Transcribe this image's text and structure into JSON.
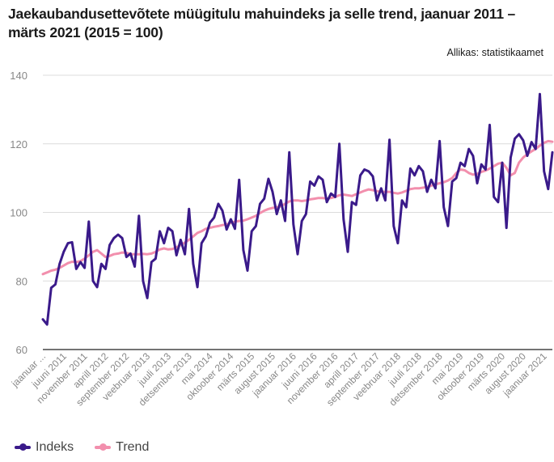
{
  "chart_data": {
    "type": "line",
    "title": "Jaekaubandusettevõtete müügitulu mahuindeks ja selle trend, jaanuar 2011 – märts 2021 (2015 = 100)",
    "source": "Allikas: statistikaamet",
    "xlabel": "",
    "ylabel": "",
    "ylim": [
      60,
      140
    ],
    "yticks": [
      60,
      80,
      100,
      120,
      140
    ],
    "grid": true,
    "legend_position": "bottom-left",
    "x_start": "2011-01",
    "x_count": 123,
    "xtick_labels": [
      "jaanuar ...",
      "juuni 2011",
      "november 2011",
      "aprill 2012",
      "september 2012",
      "veebruar 2013",
      "juuli 2013",
      "detsember 2013",
      "mai 2014",
      "oktoober 2014",
      "märts 2015",
      "august 2015",
      "jaanuar 2016",
      "juuni 2016",
      "november 2016",
      "aprill 2017",
      "september 2017",
      "veebruar 2018",
      "juuli 2018",
      "detsember 2018",
      "mai 2019",
      "oktoober 2019",
      "märts 2020",
      "august 2020",
      "jaanuar 2021"
    ],
    "xtick_every_months": 5,
    "series": [
      {
        "name": "Indeks",
        "color": "#3a1a8a",
        "values": [
          68.8,
          67.3,
          78.0,
          79.0,
          85.0,
          88.5,
          91.0,
          91.3,
          83.5,
          85.5,
          83.8,
          97.3,
          80.0,
          78.2,
          85.0,
          83.5,
          90.5,
          92.5,
          93.5,
          92.5,
          87.0,
          88.0,
          84.2,
          99.0,
          80.0,
          75.0,
          85.5,
          86.5,
          94.5,
          91.0,
          95.5,
          94.5,
          87.5,
          92.0,
          87.8,
          101.0,
          85.0,
          78.2,
          91.0,
          93.0,
          97.0,
          98.5,
          102.5,
          100.5,
          95.0,
          98.0,
          95.2,
          109.5,
          89.0,
          83.0,
          94.5,
          96.0,
          102.5,
          104.0,
          109.8,
          106.0,
          99.5,
          103.5,
          97.5,
          117.5,
          96.5,
          87.8,
          97.5,
          99.5,
          109.0,
          107.8,
          110.5,
          109.5,
          103.0,
          105.5,
          104.5,
          120.0,
          98.0,
          88.5,
          103.0,
          102.2,
          110.8,
          112.5,
          112.0,
          110.5,
          103.5,
          107.0,
          103.5,
          121.2,
          96.0,
          91.0,
          103.5,
          101.5,
          112.8,
          110.8,
          113.5,
          112.0,
          106.0,
          109.5,
          107.0,
          120.8,
          101.5,
          96.0,
          109.0,
          110.0,
          114.5,
          113.5,
          118.5,
          116.5,
          108.5,
          114.0,
          112.5,
          125.5,
          104.5,
          103.0,
          114.5,
          95.5,
          116.0,
          121.5,
          122.8,
          121.0,
          116.5,
          120.5,
          118.5,
          134.5,
          112.0,
          106.8,
          117.5
        ]
      },
      {
        "name": "Trend",
        "color": "#f28fad",
        "values": [
          82.0,
          82.5,
          83.0,
          83.3,
          83.8,
          84.5,
          85.2,
          85.6,
          85.5,
          85.8,
          86.5,
          87.5,
          88.5,
          89.0,
          88.0,
          87.0,
          87.3,
          87.8,
          88.0,
          88.3,
          88.2,
          87.8,
          87.8,
          87.8,
          87.9,
          87.8,
          88.0,
          88.5,
          89.2,
          89.5,
          89.2,
          89.3,
          89.8,
          90.5,
          91.2,
          92.0,
          93.0,
          94.0,
          94.5,
          95.2,
          95.5,
          95.8,
          96.0,
          96.3,
          96.5,
          97.0,
          97.3,
          97.5,
          97.6,
          98.0,
          98.5,
          99.0,
          99.8,
          100.5,
          101.0,
          101.3,
          101.5,
          101.8,
          102.5,
          103.2,
          103.5,
          103.5,
          103.3,
          103.5,
          103.8,
          104.0,
          104.2,
          104.2,
          104.0,
          104.2,
          104.5,
          105.0,
          105.2,
          105.0,
          104.8,
          105.3,
          105.8,
          106.3,
          106.7,
          106.5,
          106.2,
          106.0,
          106.0,
          106.0,
          105.7,
          105.5,
          105.8,
          106.3,
          106.8,
          107.0,
          107.0,
          107.2,
          107.4,
          107.8,
          108.2,
          108.5,
          108.8,
          109.3,
          110.0,
          111.5,
          112.5,
          112.3,
          111.5,
          111.0,
          111.2,
          111.8,
          112.2,
          112.8,
          113.5,
          114.2,
          114.5,
          113.0,
          110.8,
          111.5,
          114.5,
          116.0,
          117.0,
          117.8,
          118.5,
          119.5,
          120.3,
          120.8,
          120.6
        ]
      }
    ]
  }
}
